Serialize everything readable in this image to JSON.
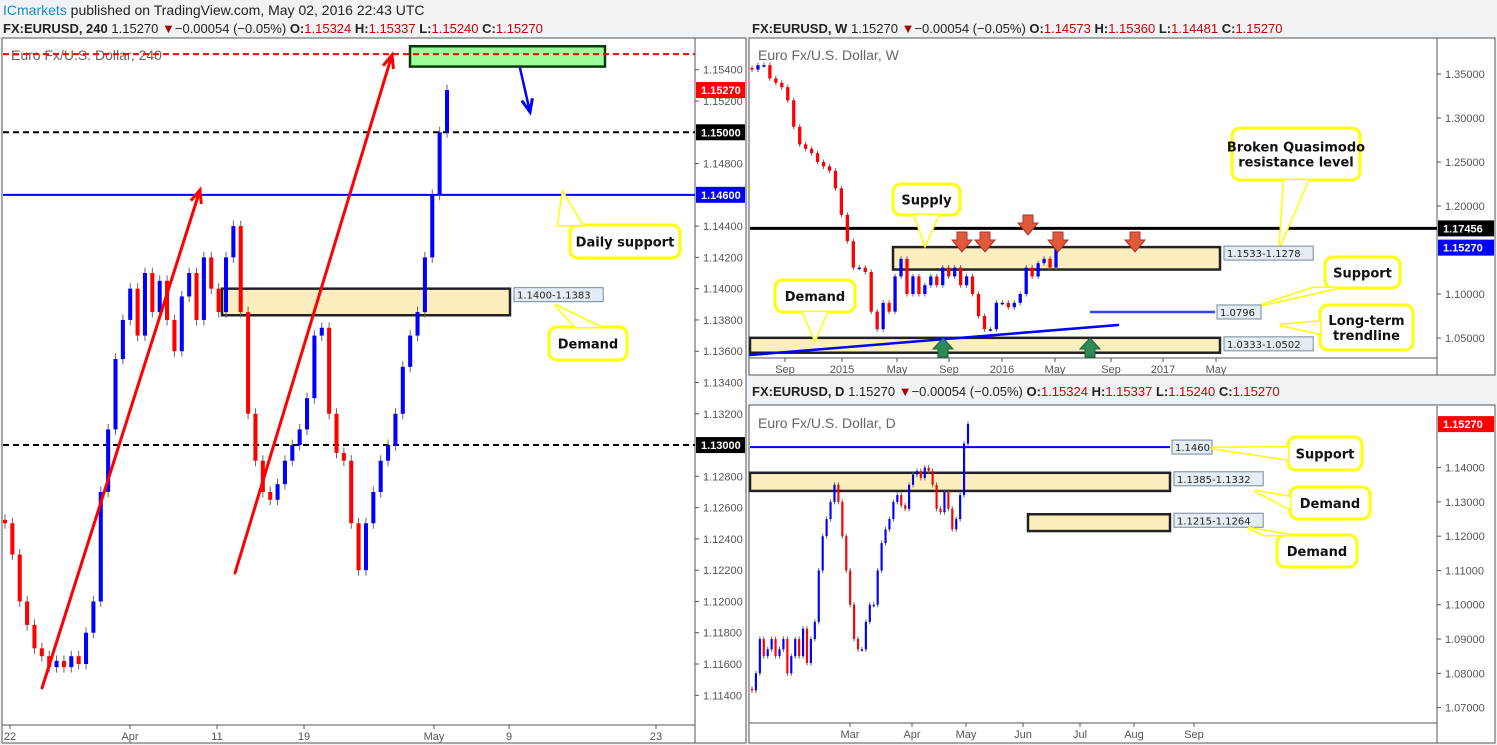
{
  "header": {
    "brand": "ICmarkets",
    "text": " published on TradingView.com, May 02, 2016 22:43 UTC"
  },
  "colors": {
    "up": "#0000ff",
    "down": "#ff0000",
    "zone": "#fdeec0",
    "callout": "#ffff00",
    "green_zone": "#9cff9c"
  },
  "chart_data": [
    {
      "type": "candlestick",
      "symbol": "FX:EURUSD, 240",
      "last": "1.15270",
      "change": "−0.00054 (−0.05%)",
      "o": "1.15324",
      "h": "1.15337",
      "l": "1.15240",
      "c": "1.15270",
      "watermark": "Euro Fx/U.S. Dollar, 240",
      "ylim": [
        1.1121,
        1.1559
      ],
      "yticks": [
        "1.15400",
        "1.15200",
        "1.14800",
        "1.14400",
        "1.14200",
        "1.14000",
        "1.13800",
        "1.13600",
        "1.13400",
        "1.13200",
        "1.12800",
        "1.12600",
        "1.12400",
        "1.12200",
        "1.12000",
        "1.11800",
        "1.11600",
        "1.11400"
      ],
      "xticks": [
        "22",
        "Apr",
        "11",
        "19",
        "May",
        "9",
        "23"
      ],
      "closes": [
        1.125,
        1.123,
        1.12,
        1.1185,
        1.117,
        1.1165,
        1.1158,
        1.1162,
        1.1158,
        1.1165,
        1.116,
        1.118,
        1.12,
        1.127,
        1.131,
        1.1355,
        1.138,
        1.14,
        1.137,
        1.141,
        1.1385,
        1.1405,
        1.138,
        1.136,
        1.1395,
        1.141,
        1.138,
        1.142,
        1.14,
        1.1385,
        1.142,
        1.144,
        1.1385,
        1.132,
        1.129,
        1.127,
        1.1265,
        1.1275,
        1.129,
        1.13,
        1.131,
        1.133,
        1.137,
        1.1375,
        1.132,
        1.1295,
        1.129,
        1.125,
        1.122,
        1.125,
        1.127,
        1.129,
        1.13,
        1.132,
        1.135,
        1.137,
        1.1385,
        1.142,
        1.146,
        1.15,
        1.1527
      ],
      "badges": [
        {
          "text": "1.15270",
          "color": "#ff0000",
          "price": 1.1527
        },
        {
          "text": "1.15000",
          "color": "#000000",
          "price": 1.15
        },
        {
          "text": "1.14600",
          "color": "#0000ff",
          "price": 1.146
        },
        {
          "text": "1.13000",
          "color": "#000000",
          "price": 1.13
        }
      ],
      "levels": [
        {
          "price": 1.155,
          "color": "#ff0000",
          "dash": true
        },
        {
          "price": 1.15,
          "color": "#000000",
          "dash": true
        },
        {
          "price": 1.146,
          "color": "#0000ff",
          "dash": false
        },
        {
          "price": 1.13,
          "color": "#000000",
          "dash": true
        }
      ],
      "zones": [
        {
          "label": "1.1400-1.1383",
          "top": 1.14,
          "bottom": 1.1383
        },
        {
          "label": "",
          "top": 1.1555,
          "bottom": 1.1542,
          "green": true
        }
      ],
      "callouts": [
        "Daily support",
        "Demand"
      ]
    },
    {
      "type": "candlestick",
      "symbol": "FX:EURUSD, W",
      "last": "1.15270",
      "change": "−0.00054 (−0.05%)",
      "o": "1.14573",
      "h": "1.15360",
      "l": "1.14481",
      "c": "1.15270",
      "watermark": "Euro Fx/U.S. Dollar, W",
      "ylim": [
        1.0273,
        1.3886
      ],
      "yticks": [
        "1.35000",
        "1.30000",
        "1.25000",
        "1.20000",
        "1.10000",
        "1.05000"
      ],
      "xticks": [
        "Sep",
        "2015",
        "May",
        "Sep",
        "2016",
        "May",
        "Sep",
        "2017",
        "May"
      ],
      "closes": [
        1.355,
        1.36,
        1.36,
        1.345,
        1.34,
        1.335,
        1.32,
        1.29,
        1.27,
        1.265,
        1.26,
        1.25,
        1.245,
        1.24,
        1.22,
        1.19,
        1.16,
        1.13,
        1.13,
        1.125,
        1.08,
        1.06,
        1.09,
        1.08,
        1.12,
        1.14,
        1.1,
        1.12,
        1.1,
        1.11,
        1.12,
        1.11,
        1.13,
        1.12,
        1.13,
        1.11,
        1.12,
        1.1,
        1.075,
        1.06,
        1.06,
        1.09,
        1.09,
        1.085,
        1.09,
        1.1,
        1.13,
        1.12,
        1.135,
        1.14,
        1.13,
        1.1527
      ],
      "badges": [
        {
          "text": "1.17456",
          "color": "#000000",
          "price": 1.17456
        },
        {
          "text": "1.15270",
          "color": "#0000ff",
          "price": 1.1527
        }
      ],
      "levels": [
        {
          "price": 1.17456,
          "color": "#000000",
          "dash": false
        }
      ],
      "zones": [
        {
          "label": "1.1533-1.1278",
          "top": 1.1533,
          "bottom": 1.1278
        },
        {
          "label": "1.0333-1.0502",
          "top": 1.0502,
          "bottom": 1.0333
        }
      ],
      "support": {
        "label": "1.0796",
        "price": 1.0796
      },
      "callouts": [
        "Supply",
        "Demand",
        "Broken Quasimodo resistance level",
        "Support",
        "Long-term trendline"
      ]
    },
    {
      "type": "candlestick",
      "symbol": "FX:EURUSD, D",
      "last": "1.15270",
      "change": "−0.00054 (−0.05%)",
      "o": "1.15324",
      "h": "1.15337",
      "l": "1.15240",
      "c": "1.15270",
      "watermark": "Euro Fx/U.S. Dollar, D",
      "ylim": [
        1.0655,
        1.1574
      ],
      "yticks": [
        "1.14000",
        "1.13000",
        "1.12000",
        "1.11000",
        "1.10000",
        "1.09000",
        "1.08000",
        "1.07000"
      ],
      "xticks": [
        "Mar",
        "Apr",
        "May",
        "Jun",
        "Jul",
        "Aug",
        "Sep"
      ],
      "closes": [
        1.075,
        1.08,
        1.09,
        1.085,
        1.087,
        1.09,
        1.085,
        1.087,
        1.09,
        1.08,
        1.085,
        1.09,
        1.085,
        1.093,
        1.083,
        1.09,
        1.095,
        1.11,
        1.12,
        1.125,
        1.13,
        1.135,
        1.13,
        1.12,
        1.11,
        1.1,
        1.09,
        1.087,
        1.087,
        1.095,
        1.1,
        1.1,
        1.11,
        1.118,
        1.122,
        1.125,
        1.13,
        1.132,
        1.129,
        1.128,
        1.135,
        1.138,
        1.139,
        1.137,
        1.14,
        1.139,
        1.135,
        1.128,
        1.127,
        1.133,
        1.128,
        1.122,
        1.125,
        1.132,
        1.147,
        1.1527
      ],
      "badges": [
        {
          "text": "1.15270",
          "color": "#ff0000",
          "price": 1.1527
        }
      ],
      "levels": [
        {
          "price": 1.146,
          "color": "#0000ff",
          "dash": false,
          "label": "1.1460"
        }
      ],
      "zones": [
        {
          "label": "1.1385-1.1332",
          "top": 1.1385,
          "bottom": 1.1332
        },
        {
          "label": "1.1215-1.1264",
          "top": 1.1264,
          "bottom": 1.1215
        }
      ],
      "callouts": [
        "Support",
        "Demand",
        "Demand"
      ]
    }
  ]
}
